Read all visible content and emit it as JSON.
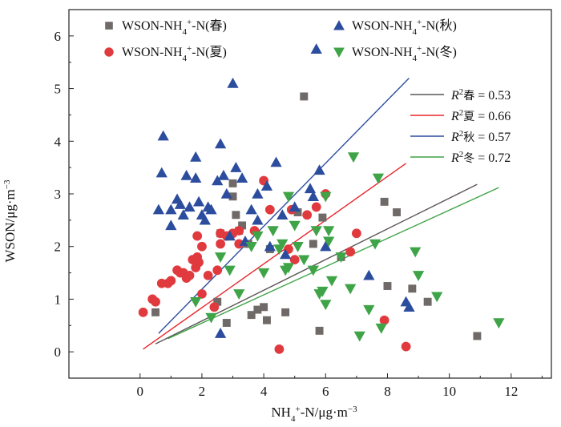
{
  "chart_data": {
    "type": "scatter",
    "xlabel": "NH4+-N/μg·m−3",
    "ylabel": "WSON/μg·m−3",
    "xlim": [
      -2.3,
      13.3
    ],
    "ylim": [
      -0.5,
      6.5
    ],
    "xticks": [
      "0",
      "2",
      "4",
      "6",
      "8",
      "10",
      "12"
    ],
    "yticks": [
      "0",
      "1",
      "2",
      "3",
      "4",
      "5",
      "6"
    ],
    "series": [
      {
        "name": "WSON-NH4+-N(春)",
        "marker": "square",
        "color": "#6f6a68",
        "points": [
          [
            0.5,
            0.75
          ],
          [
            2.5,
            0.95
          ],
          [
            2.8,
            0.55
          ],
          [
            2.6,
            2.25
          ],
          [
            3.0,
            3.2
          ],
          [
            3.0,
            2.95
          ],
          [
            3.1,
            2.6
          ],
          [
            3.2,
            2.3
          ],
          [
            3.3,
            2.4
          ],
          [
            3.5,
            2.05
          ],
          [
            3.6,
            0.7
          ],
          [
            3.8,
            0.8
          ],
          [
            4.0,
            0.85
          ],
          [
            4.1,
            0.6
          ],
          [
            4.2,
            1.95
          ],
          [
            4.7,
            0.75
          ],
          [
            5.1,
            2.65
          ],
          [
            5.3,
            4.85
          ],
          [
            5.6,
            2.05
          ],
          [
            5.8,
            0.4
          ],
          [
            5.9,
            2.55
          ],
          [
            6.5,
            1.8
          ],
          [
            7.9,
            2.85
          ],
          [
            8.0,
            1.25
          ],
          [
            8.3,
            2.65
          ],
          [
            8.8,
            1.2
          ],
          [
            9.3,
            0.95
          ],
          [
            10.9,
            0.3
          ]
        ]
      },
      {
        "name": "WSON-NH4+-N(夏)",
        "marker": "circle",
        "color": "#e03a3e",
        "points": [
          [
            0.1,
            0.75
          ],
          [
            0.4,
            1.0
          ],
          [
            0.5,
            0.95
          ],
          [
            0.7,
            1.3
          ],
          [
            0.9,
            1.3
          ],
          [
            1.0,
            1.35
          ],
          [
            1.2,
            1.55
          ],
          [
            1.3,
            1.5
          ],
          [
            1.4,
            1.5
          ],
          [
            1.5,
            1.4
          ],
          [
            1.6,
            1.45
          ],
          [
            1.7,
            1.75
          ],
          [
            1.8,
            1.6
          ],
          [
            1.85,
            1.8
          ],
          [
            1.9,
            1.7
          ],
          [
            1.85,
            2.2
          ],
          [
            2.0,
            2.0
          ],
          [
            2.0,
            1.1
          ],
          [
            2.2,
            1.45
          ],
          [
            2.4,
            0.85
          ],
          [
            2.5,
            1.55
          ],
          [
            2.6,
            2.05
          ],
          [
            2.6,
            2.25
          ],
          [
            2.8,
            2.2
          ],
          [
            3.0,
            2.25
          ],
          [
            3.2,
            2.05
          ],
          [
            3.2,
            2.3
          ],
          [
            3.7,
            2.3
          ],
          [
            4.0,
            3.25
          ],
          [
            4.2,
            2.7
          ],
          [
            4.5,
            0.05
          ],
          [
            4.8,
            1.95
          ],
          [
            4.9,
            2.7
          ],
          [
            5.0,
            1.75
          ],
          [
            5.4,
            2.6
          ],
          [
            5.7,
            2.75
          ],
          [
            6.0,
            3.0
          ],
          [
            6.8,
            1.9
          ],
          [
            7.0,
            2.25
          ],
          [
            7.9,
            0.6
          ],
          [
            8.6,
            0.1
          ]
        ]
      },
      {
        "name": "WSON-NH4+-N(秋)",
        "marker": "triangle-up",
        "color": "#2c4d9e",
        "points": [
          [
            0.6,
            2.7
          ],
          [
            0.7,
            3.4
          ],
          [
            0.75,
            4.1
          ],
          [
            1.0,
            2.4
          ],
          [
            1.0,
            2.7
          ],
          [
            1.2,
            2.9
          ],
          [
            1.3,
            2.8
          ],
          [
            1.4,
            2.6
          ],
          [
            1.5,
            3.35
          ],
          [
            1.6,
            2.75
          ],
          [
            1.8,
            3.3
          ],
          [
            1.8,
            3.7
          ],
          [
            1.9,
            2.85
          ],
          [
            2.0,
            2.6
          ],
          [
            2.1,
            2.5
          ],
          [
            2.2,
            2.75
          ],
          [
            2.3,
            2.7
          ],
          [
            2.5,
            3.25
          ],
          [
            2.6,
            3.95
          ],
          [
            2.7,
            3.35
          ],
          [
            2.8,
            3.0
          ],
          [
            2.9,
            2.2
          ],
          [
            3.0,
            5.1
          ],
          [
            3.1,
            3.5
          ],
          [
            3.3,
            3.3
          ],
          [
            3.4,
            2.1
          ],
          [
            3.6,
            2.7
          ],
          [
            3.8,
            3.0
          ],
          [
            3.8,
            2.5
          ],
          [
            4.1,
            3.15
          ],
          [
            4.2,
            2.0
          ],
          [
            4.4,
            3.6
          ],
          [
            4.6,
            2.6
          ],
          [
            4.7,
            1.85
          ],
          [
            5.0,
            2.75
          ],
          [
            5.5,
            3.1
          ],
          [
            5.6,
            2.95
          ],
          [
            5.7,
            5.75
          ],
          [
            5.8,
            3.45
          ],
          [
            6.0,
            2.0
          ],
          [
            7.4,
            1.45
          ],
          [
            8.6,
            0.95
          ],
          [
            8.7,
            0.85
          ],
          [
            2.6,
            0.35
          ]
        ]
      },
      {
        "name": "WSON-NH4+-N(冬)",
        "marker": "triangle-down",
        "color": "#3ea447",
        "points": [
          [
            1.8,
            0.95
          ],
          [
            2.3,
            0.65
          ],
          [
            2.6,
            1.8
          ],
          [
            2.9,
            1.55
          ],
          [
            3.2,
            1.1
          ],
          [
            3.6,
            2.0
          ],
          [
            3.8,
            2.2
          ],
          [
            4.0,
            1.5
          ],
          [
            4.3,
            2.3
          ],
          [
            4.5,
            1.95
          ],
          [
            4.6,
            2.05
          ],
          [
            4.7,
            1.55
          ],
          [
            4.8,
            1.6
          ],
          [
            4.8,
            2.95
          ],
          [
            5.0,
            2.4
          ],
          [
            5.1,
            2.0
          ],
          [
            5.3,
            1.75
          ],
          [
            5.6,
            1.55
          ],
          [
            5.7,
            2.3
          ],
          [
            5.8,
            1.1
          ],
          [
            5.9,
            1.15
          ],
          [
            6.0,
            2.95
          ],
          [
            6.0,
            0.9
          ],
          [
            6.1,
            2.3
          ],
          [
            6.1,
            2.1
          ],
          [
            6.2,
            1.35
          ],
          [
            6.5,
            1.8
          ],
          [
            6.8,
            1.2
          ],
          [
            6.9,
            3.7
          ],
          [
            7.1,
            0.3
          ],
          [
            7.4,
            0.8
          ],
          [
            7.6,
            2.05
          ],
          [
            7.7,
            3.3
          ],
          [
            7.8,
            0.45
          ],
          [
            8.9,
            1.9
          ],
          [
            9.0,
            1.45
          ],
          [
            9.6,
            1.05
          ],
          [
            11.6,
            0.55
          ]
        ]
      }
    ],
    "fit_lines": [
      {
        "series": "春",
        "r2": "0.53",
        "label_prefix": "R",
        "label_sub": "春",
        "color": "#5c5655",
        "x": [
          0.5,
          10.9
        ],
        "y": [
          0.15,
          3.18
        ]
      },
      {
        "series": "夏",
        "r2": "0.66",
        "label_prefix": "R",
        "label_sub": "夏",
        "color": "#e8262c",
        "x": [
          0.1,
          8.6
        ],
        "y": [
          0.05,
          3.58
        ]
      },
      {
        "series": "秋",
        "r2": "0.57",
        "label_prefix": "R",
        "label_sub": "秋",
        "color": "#2c4d9e",
        "x": [
          0.6,
          8.7
        ],
        "y": [
          0.35,
          5.2
        ]
      },
      {
        "series": "冬",
        "r2": "0.72",
        "label_prefix": "R",
        "label_sub": "冬",
        "color": "#3ea447",
        "x": [
          0.9,
          11.6
        ],
        "y": [
          0.25,
          3.12
        ]
      }
    ],
    "legend": {
      "items": [
        {
          "base": "WSON-NH",
          "sub": "4",
          "sup": "+",
          "tail": "-N(春)",
          "marker": "square",
          "color": "#6f6a68"
        },
        {
          "base": "WSON-NH",
          "sub": "4",
          "sup": "+",
          "tail": "-N(秋)",
          "marker": "triangle-up",
          "color": "#2c4d9e"
        },
        {
          "base": "WSON-NH",
          "sub": "4",
          "sup": "+",
          "tail": "-N(夏)",
          "marker": "circle",
          "color": "#e03a3e"
        },
        {
          "base": "WSON-NH",
          "sub": "4",
          "sup": "+",
          "tail": "-N(冬)",
          "marker": "triangle-down",
          "color": "#3ea447"
        }
      ],
      "placement": "top"
    },
    "grid": false
  }
}
